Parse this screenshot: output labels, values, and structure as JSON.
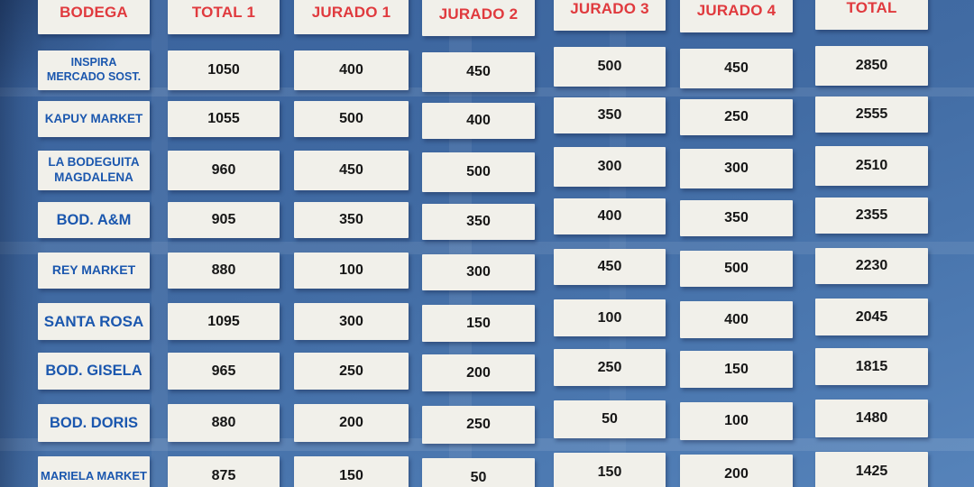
{
  "colors": {
    "cell_bg": "#f1f0ea",
    "header_text": "#e03a3e",
    "bodega_text": "#1b57ae",
    "value_text": "#161616",
    "background_top": "#3a639d",
    "background_bottom": "#5683ba"
  },
  "chart_data": {
    "type": "table",
    "columns": [
      "BODEGA",
      "TOTAL 1",
      "JURADO 1",
      "JURADO 2",
      "JURADO 3",
      "JURADO 4",
      "TOTAL"
    ],
    "rows": [
      {
        "bodega": "INSPIRA MERCADO SOST.",
        "bodega_lines": [
          "INSPIRA",
          "MERCADO SOST."
        ],
        "values": [
          1050,
          400,
          450,
          500,
          450,
          2850
        ]
      },
      {
        "bodega": "KAPUY MARKET",
        "bodega_lines": [
          "KAPUY MARKET"
        ],
        "values": [
          1055,
          500,
          400,
          350,
          250,
          2555
        ]
      },
      {
        "bodega": "LA BODEGUITA MAGDALENA",
        "bodega_lines": [
          "LA BODEGUITA",
          "MAGDALENA"
        ],
        "values": [
          960,
          450,
          500,
          300,
          300,
          2510
        ]
      },
      {
        "bodega": "BOD. A&M",
        "bodega_lines": [
          "BOD. A&M"
        ],
        "values": [
          905,
          350,
          350,
          400,
          350,
          2355
        ]
      },
      {
        "bodega": "REY MARKET",
        "bodega_lines": [
          "REY MARKET"
        ],
        "values": [
          880,
          100,
          300,
          450,
          500,
          2230
        ]
      },
      {
        "bodega": "SANTA ROSA",
        "bodega_lines": [
          "SANTA ROSA"
        ],
        "values": [
          1095,
          300,
          150,
          100,
          400,
          2045
        ]
      },
      {
        "bodega": "BOD. GISELA",
        "bodega_lines": [
          "BOD. GISELA"
        ],
        "values": [
          965,
          250,
          200,
          250,
          150,
          1815
        ]
      },
      {
        "bodega": "BOD. DORIS",
        "bodega_lines": [
          "BOD. DORIS"
        ],
        "values": [
          880,
          200,
          250,
          50,
          100,
          1480
        ]
      },
      {
        "bodega": "MARIELA MARKET",
        "bodega_lines": [
          "MARIELA MARKET"
        ],
        "values": [
          875,
          150,
          50,
          150,
          200,
          1425
        ]
      }
    ]
  }
}
